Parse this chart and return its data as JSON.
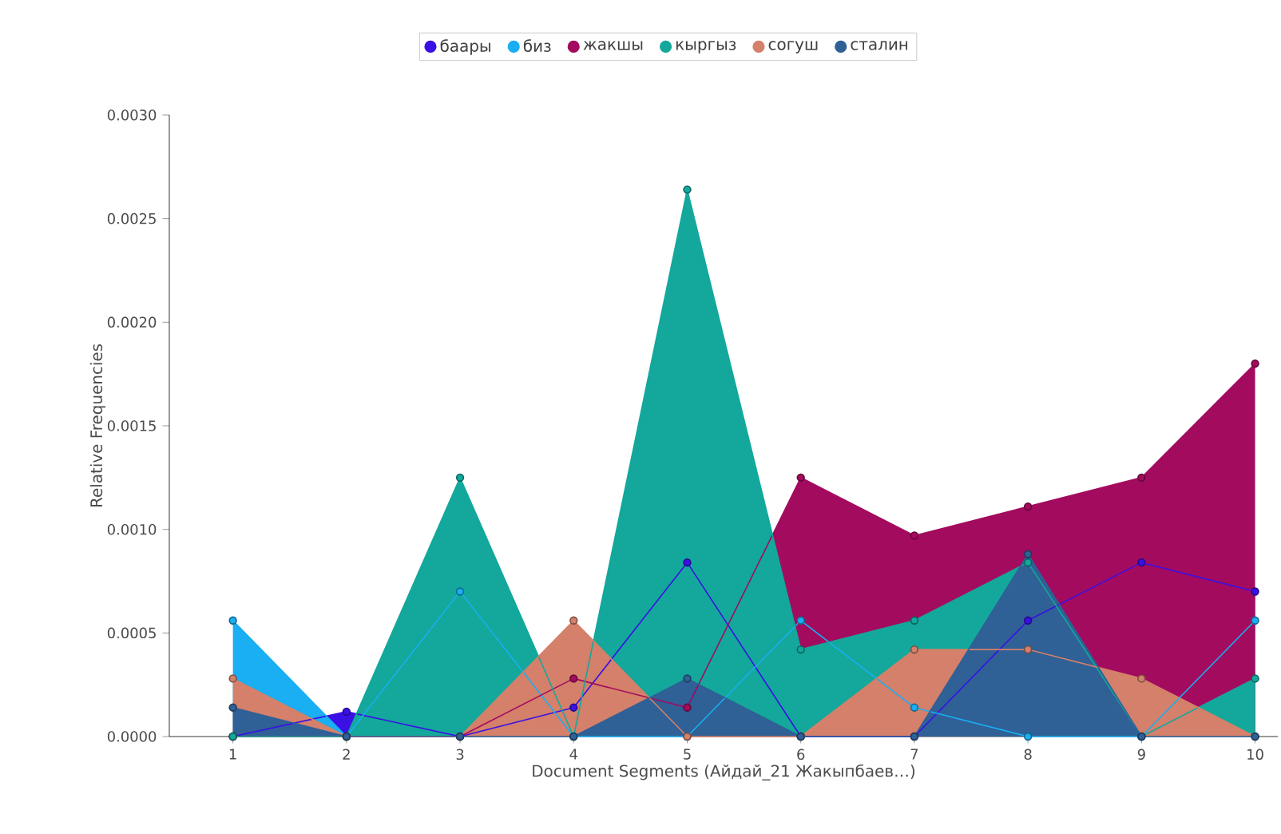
{
  "chart_data": {
    "type": "area",
    "xlabel": "Document Segments (Айдай_21 Жакыпбаев…)",
    "ylabel": "Relative Frequencies",
    "x": [
      1,
      2,
      3,
      4,
      5,
      6,
      7,
      8,
      9,
      10
    ],
    "xlim": [
      0.44,
      10.2
    ],
    "xticks": [
      1,
      2,
      3,
      4,
      5,
      6,
      7,
      8,
      9,
      10
    ],
    "ylim": [
      0,
      0.003
    ],
    "yticks": [
      {
        "value": 0,
        "label": "0.0000"
      },
      {
        "value": 0.0005,
        "label": "0.0005"
      },
      {
        "value": 0.001,
        "label": "0.0010"
      },
      {
        "value": 0.0015,
        "label": "0.0015"
      },
      {
        "value": 0.002,
        "label": "0.0020"
      },
      {
        "value": 0.0025,
        "label": "0.0025"
      },
      {
        "value": 0.003,
        "label": "0.0030"
      }
    ],
    "series": [
      {
        "name": "баары",
        "color": "#3a10e5",
        "values": [
          0,
          0.00012,
          0,
          0.00014,
          0.00084,
          0,
          0,
          0.00056,
          0.00084,
          0.0007
        ]
      },
      {
        "name": "биз",
        "color": "#1aaef2",
        "values": [
          0.00056,
          0,
          0.0007,
          0,
          0,
          0.00056,
          0.00014,
          0,
          0,
          0.00056
        ]
      },
      {
        "name": "жакшы",
        "color": "#a30b5e",
        "values": [
          0,
          0,
          0,
          0.00028,
          0.00014,
          0.00125,
          0.00097,
          0.00111,
          0.00125,
          0.0018
        ]
      },
      {
        "name": "кыргыз",
        "color": "#13a89b",
        "values": [
          0,
          0,
          0.00125,
          0,
          0.00264,
          0.00042,
          0.00056,
          0.00084,
          0,
          0.00028
        ]
      },
      {
        "name": "согуш",
        "color": "#d4806a",
        "values": [
          0.00028,
          0,
          0,
          0.00056,
          0,
          0,
          0.00042,
          0.00042,
          0.00028,
          0
        ]
      },
      {
        "name": "сталин",
        "color": "#2f6096",
        "values": [
          0.00014,
          0,
          0,
          0,
          0.00028,
          0,
          0,
          0.00088,
          0,
          0
        ]
      }
    ],
    "marker": "circle",
    "line_style": "solid",
    "legend": "top",
    "grid": false
  }
}
